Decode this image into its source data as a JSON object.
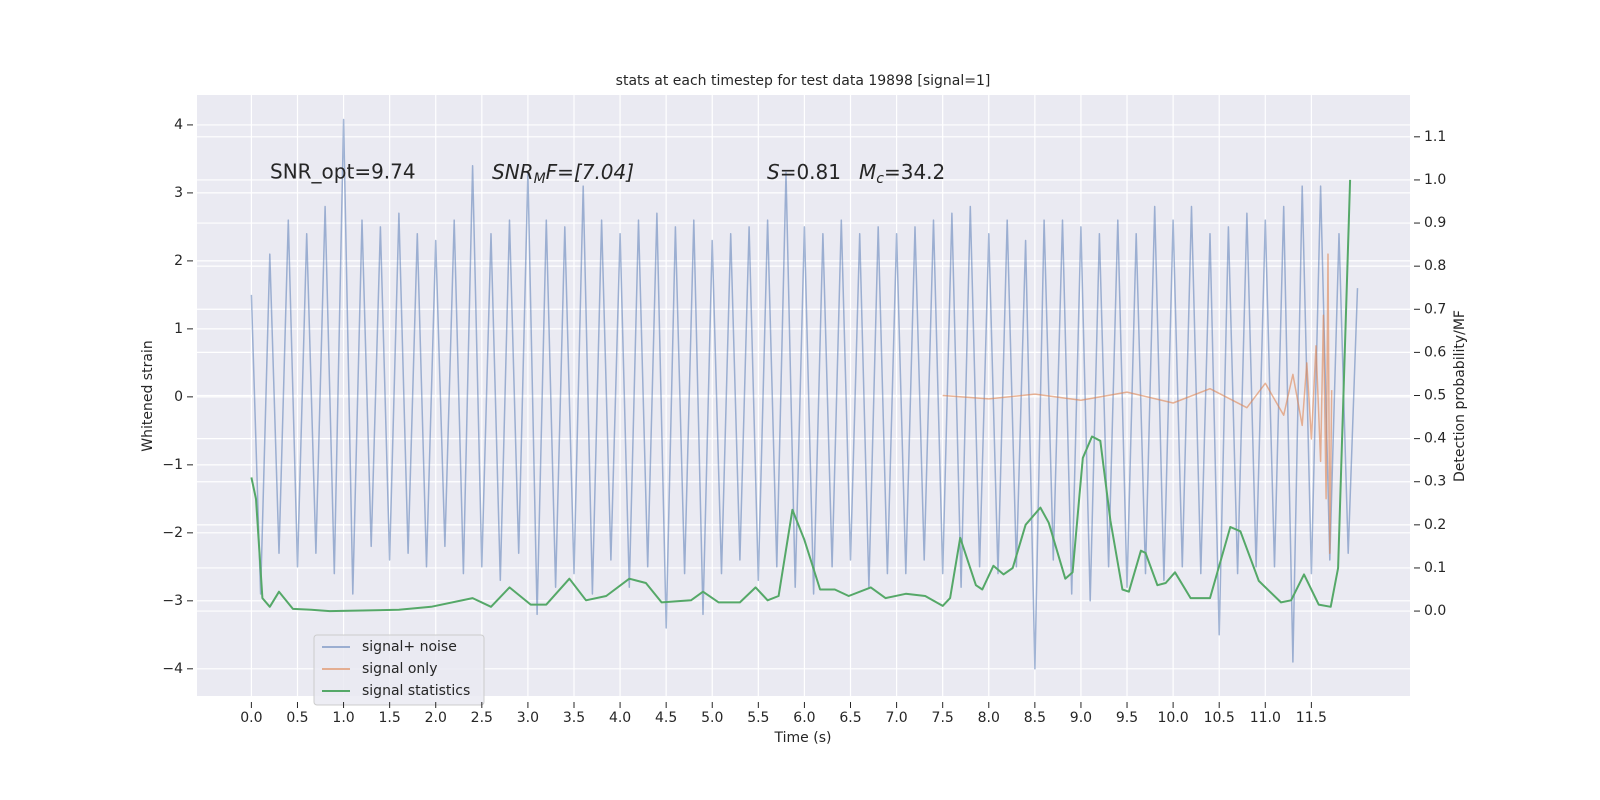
{
  "chart_data": {
    "type": "line",
    "title": "stats at each timestep for test data 19898 [signal=1]",
    "xlabel": "Time (s)",
    "ylabel": "Whitened strain",
    "y2label": "Detection probability/MF",
    "annotations": {
      "snr_opt": "SNR_opt=9.74",
      "snr_mf": [
        "SNR",
        "M",
        "F=[7.04]"
      ],
      "s": [
        "S",
        "=0.81"
      ],
      "mc": [
        "M",
        "c",
        "=34.2"
      ]
    },
    "xlim": [
      -0.59,
      12.57
    ],
    "ylim": [
      -4.4,
      4.44
    ],
    "y2lim": [
      -0.197,
      1.197
    ],
    "xticks": [
      {
        "value": 0,
        "label": "0.0"
      },
      0.5,
      {
        "value": 1,
        "label": "1.0"
      },
      1.5,
      {
        "value": 2,
        "label": "2.0"
      },
      2.5,
      {
        "value": 3,
        "label": "3.0"
      },
      3.5,
      {
        "value": 4,
        "label": "4.0"
      },
      4.5,
      {
        "value": 5,
        "label": "5.0"
      },
      5.5,
      {
        "value": 6,
        "label": "6.0"
      },
      6.5,
      {
        "value": 7,
        "label": "7.0"
      },
      7.5,
      {
        "value": 8,
        "label": "8.0"
      },
      8.5,
      {
        "value": 9,
        "label": "9.0"
      },
      9.5,
      {
        "value": 10,
        "label": "10.0"
      },
      10.5,
      {
        "value": 11,
        "label": "11.0"
      },
      11.5
    ],
    "yticks": [
      {
        "value": -4,
        "label": "−4"
      },
      {
        "value": -3,
        "label": "−3"
      },
      {
        "value": -2,
        "label": "−2"
      },
      {
        "value": -1,
        "label": "−1"
      },
      0,
      1,
      2,
      3,
      4
    ],
    "y2ticks": [
      {
        "value": 0,
        "label": "0.0"
      },
      0.1,
      0.2,
      0.3,
      0.4,
      0.5,
      0.6,
      0.7,
      0.8,
      0.9,
      {
        "value": 1,
        "label": "1.0"
      },
      1.1
    ],
    "grid": true,
    "legend": "lower left",
    "series": [
      {
        "name": "signal+ noise",
        "color": "#4c72b0",
        "opacity": 0.5,
        "x": [
          0.0,
          0.1,
          0.2,
          0.3,
          0.4,
          0.5,
          0.6,
          0.7,
          0.8,
          0.9,
          1.0,
          1.1,
          1.2,
          1.3,
          1.4,
          1.5,
          1.6,
          1.7,
          1.8,
          1.9,
          2.0,
          2.1,
          2.2,
          2.3,
          2.4,
          2.5,
          2.6,
          2.7,
          2.8,
          2.9,
          3.0,
          3.1,
          3.2,
          3.3,
          3.4,
          3.5,
          3.6,
          3.7,
          3.8,
          3.9,
          4.0,
          4.1,
          4.2,
          4.3,
          4.4,
          4.5,
          4.6,
          4.7,
          4.8,
          4.9,
          5.0,
          5.1,
          5.2,
          5.3,
          5.4,
          5.5,
          5.6,
          5.7,
          5.8,
          5.9,
          6.0,
          6.1,
          6.2,
          6.3,
          6.4,
          6.5,
          6.6,
          6.7,
          6.8,
          6.9,
          7.0,
          7.1,
          7.2,
          7.3,
          7.4,
          7.5,
          7.6,
          7.7,
          7.8,
          7.9,
          8.0,
          8.1,
          8.2,
          8.3,
          8.4,
          8.5,
          8.6,
          8.7,
          8.8,
          8.9,
          9.0,
          9.1,
          9.2,
          9.3,
          9.4,
          9.5,
          9.6,
          9.7,
          9.8,
          9.9,
          10.0,
          10.1,
          10.2,
          10.3,
          10.4,
          10.5,
          10.6,
          10.7,
          10.8,
          10.9,
          11.0,
          11.1,
          11.2,
          11.3,
          11.4,
          11.5,
          11.6,
          11.7,
          11.8,
          11.9,
          12.0
        ],
        "values": [
          1.5,
          -2.9,
          2.1,
          -2.3,
          2.6,
          -2.5,
          2.4,
          -2.3,
          2.8,
          -2.6,
          4.08,
          -2.9,
          2.6,
          -2.2,
          2.5,
          -2.4,
          2.7,
          -2.3,
          2.4,
          -2.5,
          2.3,
          -2.2,
          2.6,
          -2.6,
          3.4,
          -2.5,
          2.4,
          -2.7,
          2.6,
          -2.3,
          3.3,
          -3.2,
          2.6,
          -2.8,
          2.5,
          -2.6,
          3.1,
          -2.9,
          2.6,
          -2.4,
          2.4,
          -2.8,
          2.6,
          -2.5,
          2.7,
          -3.4,
          2.5,
          -2.6,
          2.6,
          -3.2,
          2.3,
          -2.6,
          2.4,
          -2.4,
          2.5,
          -2.7,
          2.6,
          -2.5,
          3.3,
          -2.8,
          2.5,
          -2.9,
          2.4,
          -2.5,
          2.6,
          -2.4,
          2.4,
          -2.8,
          2.5,
          -2.6,
          2.4,
          -2.6,
          2.5,
          -2.4,
          2.6,
          -2.6,
          2.7,
          -2.8,
          2.8,
          -2.5,
          2.4,
          -2.6,
          2.6,
          -2.5,
          2.3,
          -4.0,
          2.6,
          -2.4,
          2.6,
          -2.9,
          2.5,
          -3.0,
          2.4,
          -2.5,
          2.6,
          -2.8,
          2.4,
          -2.6,
          2.8,
          -2.7,
          2.6,
          -2.5,
          2.8,
          -2.6,
          2.4,
          -3.5,
          2.5,
          -2.6,
          2.7,
          -2.5,
          2.6,
          -2.5,
          2.8,
          -3.9,
          3.1,
          -2.6,
          3.1,
          -2.4,
          2.4,
          -2.3,
          1.6
        ]
      },
      {
        "name": "signal only",
        "color": "#dd8452",
        "opacity": 0.6,
        "x": [
          7.5,
          8.0,
          8.5,
          9.0,
          9.5,
          10.0,
          10.4,
          10.8,
          11.0,
          11.2,
          11.3,
          11.4,
          11.45,
          11.5,
          11.55,
          11.6,
          11.63,
          11.66,
          11.68,
          11.7,
          11.72
        ],
        "values": [
          0.02,
          -0.03,
          0.04,
          -0.05,
          0.07,
          -0.09,
          0.12,
          -0.16,
          0.2,
          -0.27,
          0.33,
          -0.42,
          0.5,
          -0.62,
          0.75,
          -0.95,
          1.2,
          -1.5,
          2.1,
          -2.3,
          0.1
        ]
      },
      {
        "name": "signal statistics",
        "color": "#55a868",
        "opacity": 1,
        "axis": "y2",
        "x": [
          0.0,
          0.05,
          0.12,
          0.2,
          0.3,
          0.45,
          0.65,
          0.85,
          1.6,
          1.95,
          2.4,
          2.6,
          2.8,
          3.03,
          3.2,
          3.45,
          3.63,
          3.85,
          4.1,
          4.28,
          4.45,
          4.77,
          4.9,
          5.07,
          5.3,
          5.47,
          5.6,
          5.72,
          5.87,
          6.0,
          6.17,
          6.33,
          6.48,
          6.72,
          6.88,
          7.1,
          7.31,
          7.5,
          7.58,
          7.69,
          7.86,
          7.93,
          8.05,
          8.16,
          8.26,
          8.4,
          8.56,
          8.65,
          8.83,
          8.91,
          9.02,
          9.12,
          9.21,
          9.32,
          9.45,
          9.52,
          9.65,
          9.7,
          9.83,
          9.92,
          10.02,
          10.19,
          10.4,
          10.62,
          10.73,
          10.93,
          11.17,
          11.28,
          11.42,
          11.58,
          11.71,
          11.79,
          11.92
        ],
        "values": [
          0.31,
          0.26,
          0.03,
          0.01,
          0.045,
          0.005,
          0.003,
          0.0,
          0.003,
          0.01,
          0.03,
          0.01,
          0.055,
          0.015,
          0.015,
          0.075,
          0.025,
          0.035,
          0.075,
          0.065,
          0.02,
          0.025,
          0.045,
          0.02,
          0.02,
          0.055,
          0.025,
          0.035,
          0.235,
          0.165,
          0.05,
          0.05,
          0.035,
          0.055,
          0.03,
          0.04,
          0.035,
          0.012,
          0.03,
          0.17,
          0.06,
          0.05,
          0.105,
          0.085,
          0.1,
          0.2,
          0.24,
          0.205,
          0.075,
          0.09,
          0.355,
          0.405,
          0.395,
          0.21,
          0.05,
          0.045,
          0.14,
          0.135,
          0.06,
          0.065,
          0.09,
          0.03,
          0.03,
          0.195,
          0.185,
          0.07,
          0.02,
          0.025,
          0.085,
          0.015,
          0.01,
          0.1,
          1.0
        ]
      }
    ]
  }
}
